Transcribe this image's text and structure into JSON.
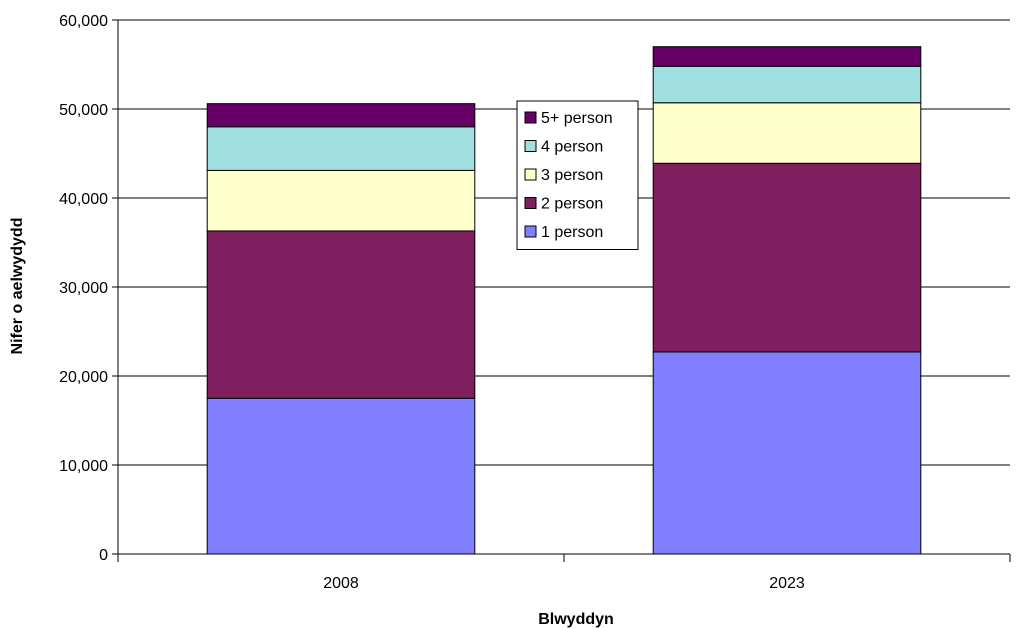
{
  "chart_data": {
    "type": "bar",
    "stacked": true,
    "categories": [
      "2008",
      "2023"
    ],
    "series": [
      {
        "name": "1 person",
        "values": [
          17500,
          22700
        ],
        "color": "#8080ff"
      },
      {
        "name": "2 person",
        "values": [
          18800,
          21200
        ],
        "color": "#7f1f5f"
      },
      {
        "name": "3 person",
        "values": [
          6800,
          6800
        ],
        "color": "#ffffcc"
      },
      {
        "name": "4 person",
        "values": [
          4900,
          4100
        ],
        "color": "#a0e0e0"
      },
      {
        "name": "5+ person",
        "values": [
          2600,
          2200
        ],
        "color": "#660066"
      }
    ],
    "xlabel": "Blwyddyn",
    "ylabel": "Nifer o aelwydydd",
    "ylim": [
      0,
      60000
    ],
    "yticks": [
      0,
      10000,
      20000,
      30000,
      40000,
      50000,
      60000
    ],
    "ytick_labels": [
      "0",
      "10,000",
      "20,000",
      "30,000",
      "40,000",
      "50,000",
      "60,000"
    ],
    "grid": true,
    "legend_position": "inside-center-top",
    "legend_order": [
      "5+ person",
      "4 person",
      "3 person",
      "2 person",
      "1 person"
    ]
  }
}
